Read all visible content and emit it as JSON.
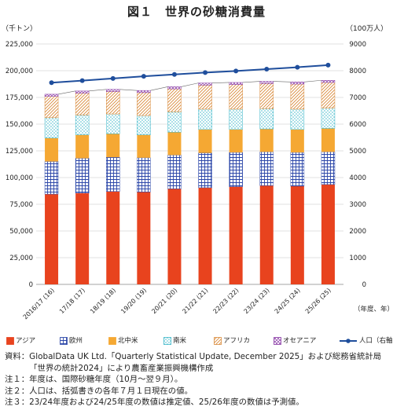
{
  "title": "図１　世界の砂糖消費量",
  "chart_data": {
    "type": "bar",
    "stacked": true,
    "categories": [
      "2016/17 (16)",
      "17/18 (17)",
      "18/19 (18)",
      "19/20 (19)",
      "20/21 (20)",
      "21/22 (21)",
      "22/23 (22)",
      "23/24 (23)",
      "24/25 (24)",
      "25/26 (25)"
    ],
    "left_axis": {
      "unit_label": "（千トン）",
      "ylim": [
        0,
        225000
      ],
      "ticks": [
        "0",
        "25,000",
        "50,000",
        "75,000",
        "100,000",
        "125,000",
        "150,000",
        "175,000",
        "200,000",
        "225,000"
      ]
    },
    "right_axis": {
      "unit_label": "（100万人）",
      "ylim": [
        0,
        9000
      ],
      "ticks": [
        "0",
        "1000",
        "2000",
        "3000",
        "4000",
        "5000",
        "6000",
        "7000",
        "8000",
        "9000"
      ]
    },
    "x_unit_label": "（年度、年）",
    "series": [
      {
        "name": "アジア",
        "color": "#e8431e",
        "pattern": "solid",
        "values": [
          84500,
          85500,
          87000,
          86500,
          89500,
          90500,
          91500,
          92500,
          92000,
          93500
        ]
      },
      {
        "name": "欧州",
        "color": "#2b46a8",
        "pattern": "grid",
        "values": [
          30500,
          32500,
          32000,
          32000,
          31500,
          32500,
          32000,
          31500,
          31500,
          30500
        ]
      },
      {
        "name": "北中米",
        "color": "#f5a833",
        "pattern": "solid",
        "values": [
          22000,
          22000,
          22000,
          21500,
          21500,
          22000,
          21500,
          21500,
          21500,
          22000
        ]
      },
      {
        "name": "南米",
        "color": "#39b6c8",
        "pattern": "dots",
        "values": [
          19000,
          18500,
          18500,
          18000,
          19000,
          19000,
          19000,
          19000,
          19000,
          19000
        ]
      },
      {
        "name": "アフリカ",
        "color": "#d98a3a",
        "pattern": "diag",
        "values": [
          20000,
          20500,
          21000,
          21500,
          21500,
          22500,
          23000,
          23500,
          23500,
          24000
        ]
      },
      {
        "name": "オセアニア",
        "color": "#8c3fa8",
        "pattern": "cross",
        "values": [
          2000,
          2000,
          2000,
          2000,
          2000,
          2000,
          2000,
          2000,
          2000,
          2000
        ]
      }
    ],
    "line_series": {
      "name": "人口（右軸）",
      "color": "#1f4e9c",
      "axis": "right",
      "values": [
        7550,
        7630,
        7710,
        7790,
        7860,
        7930,
        7990,
        8060,
        8130,
        8210
      ]
    },
    "grid": true,
    "legend_position": "bottom"
  },
  "notes": [
    {
      "key": "資料：",
      "text": "GlobalData UK Ltd.「Quarterly Statistical Update, December 2025」および総務省統計局「世界の統計2024」により農畜産業振興機構作成"
    },
    {
      "key": "注１：",
      "text": "年度は、国際砂糖年度（10月～翌９月）。"
    },
    {
      "key": "注２：",
      "text": "人口は、括弧書きの各年７月１日現在の値。"
    },
    {
      "key": "注３：",
      "text": "23/24年度および24/25年度の数値は推定値、25/26年度の数値は予測値。"
    }
  ]
}
